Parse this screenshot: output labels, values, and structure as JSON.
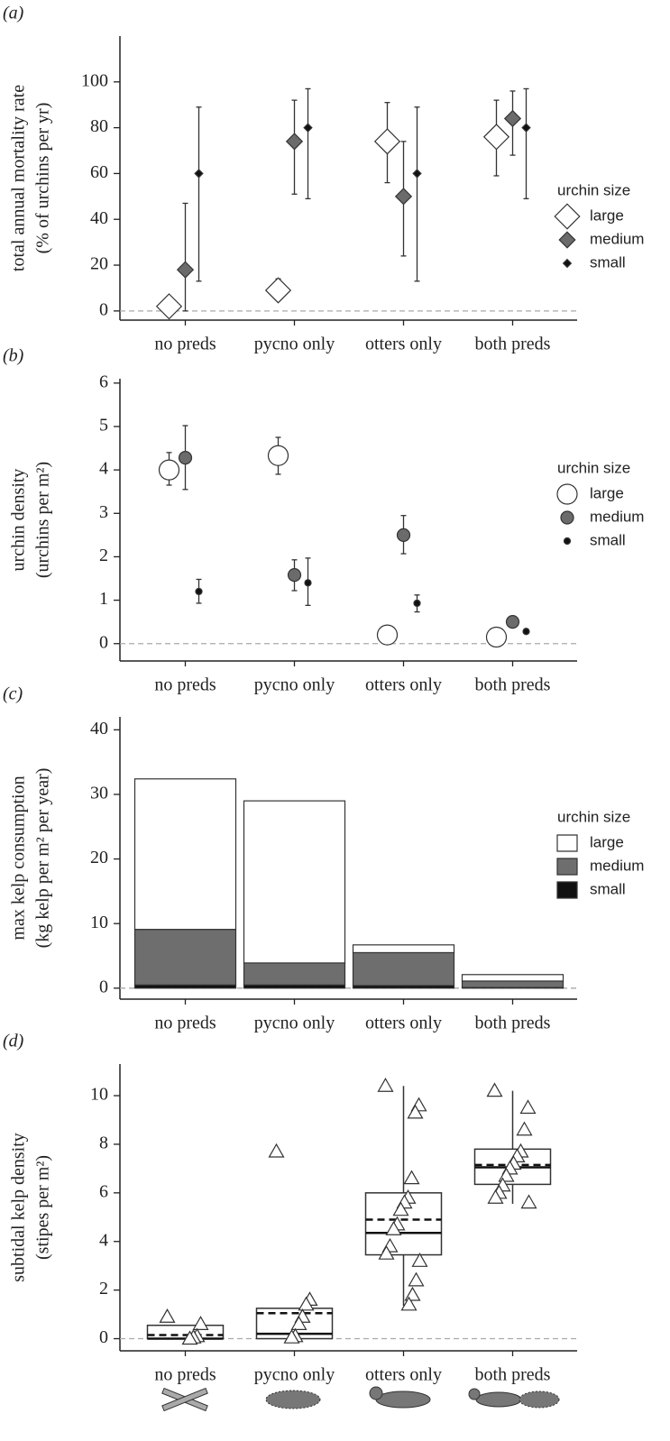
{
  "chart_data": [
    {
      "type": "scatter",
      "label": "(a)",
      "ylabel": [
        "total annual mortality rate",
        "(% of urchins per yr)"
      ],
      "categories": [
        "no preds",
        "pycno only",
        "otters only",
        "both preds"
      ],
      "ylim": [
        -4,
        120
      ],
      "yticks": [
        0,
        20,
        40,
        60,
        80,
        100
      ],
      "hline": 0,
      "marker": "diamond",
      "legend_title": "urchin size",
      "series": [
        {
          "name": "large",
          "color": "#ffffff",
          "values": [
            2,
            9,
            74,
            76
          ],
          "lower": [
            null,
            5,
            56,
            59
          ],
          "upper": [
            null,
            14,
            91,
            92
          ]
        },
        {
          "name": "medium",
          "color": "#6b6b6b",
          "values": [
            18,
            74,
            50,
            84
          ],
          "lower": [
            0,
            51,
            24,
            68
          ],
          "upper": [
            47,
            92,
            74,
            96
          ]
        },
        {
          "name": "small",
          "color": "#111111",
          "values": [
            60,
            80,
            60,
            80
          ],
          "lower": [
            13,
            49,
            13,
            49
          ],
          "upper": [
            89,
            97,
            89,
            97
          ]
        }
      ]
    },
    {
      "type": "scatter",
      "label": "(b)",
      "ylabel": [
        "urchin density",
        "(urchins per m²)"
      ],
      "categories": [
        "no preds",
        "pycno only",
        "otters only",
        "both preds"
      ],
      "ylim": [
        -0.4,
        6.1
      ],
      "yticks": [
        0,
        1,
        2,
        3,
        4,
        5,
        6
      ],
      "hline": 0,
      "marker": "circle",
      "legend_title": "urchin size",
      "series": [
        {
          "name": "large",
          "color": "#ffffff",
          "values": [
            4.0,
            4.33,
            0.2,
            0.15
          ],
          "lower": [
            3.65,
            3.9,
            null,
            null
          ],
          "upper": [
            4.4,
            4.75,
            null,
            null
          ]
        },
        {
          "name": "medium",
          "color": "#6b6b6b",
          "values": [
            4.28,
            1.58,
            2.5,
            0.5
          ],
          "lower": [
            3.55,
            1.22,
            2.07,
            null
          ],
          "upper": [
            5.02,
            1.93,
            2.95,
            null
          ]
        },
        {
          "name": "small",
          "color": "#111111",
          "values": [
            1.2,
            1.4,
            0.93,
            0.28
          ],
          "lower": [
            0.93,
            0.88,
            0.73,
            null
          ],
          "upper": [
            1.48,
            1.97,
            1.12,
            null
          ]
        }
      ]
    },
    {
      "type": "stacked_bar",
      "label": "(c)",
      "ylabel": [
        "max kelp consumption",
        "(kg kelp per m² per year)"
      ],
      "categories": [
        "no preds",
        "pycno only",
        "otters only",
        "both preds"
      ],
      "ylim": [
        -1.7,
        42
      ],
      "yticks": [
        0,
        10,
        20,
        30,
        40
      ],
      "hline": 0,
      "marker": "square",
      "legend_title": "urchin size",
      "series": [
        {
          "name": "large",
          "color": "#ffffff",
          "values": [
            23.3,
            25.1,
            1.2,
            1.0
          ]
        },
        {
          "name": "medium",
          "color": "#6e6e6e",
          "values": [
            8.6,
            3.4,
            5.1,
            1.0
          ]
        },
        {
          "name": "small",
          "color": "#111111",
          "values": [
            0.5,
            0.5,
            0.4,
            0.1
          ]
        }
      ]
    },
    {
      "type": "box",
      "label": "(d)",
      "ylabel": [
        "subtidal kelp density",
        "(stipes per m²)"
      ],
      "categories": [
        "no preds",
        "pycno only",
        "otters only",
        "both preds"
      ],
      "ylim": [
        -0.5,
        11.3
      ],
      "yticks": [
        0,
        2,
        4,
        6,
        8,
        10
      ],
      "hline": 0,
      "boxes": [
        {
          "whisker_low": null,
          "q1": 0,
          "median": 0,
          "q3": 0.55,
          "whisker_high": null,
          "mean": 0.15,
          "points": [
            0.9,
            0.6,
            0.1,
            0.05,
            0
          ]
        },
        {
          "whisker_low": 0,
          "q1": 0,
          "median": 0.2,
          "q3": 1.25,
          "whisker_high": 1.25,
          "mean": 1.05,
          "points": [
            7.7,
            1.6,
            1.4,
            0.9,
            0.6,
            0.1,
            0.05
          ]
        },
        {
          "whisker_low": 1.35,
          "q1": 3.45,
          "median": 4.35,
          "q3": 6.0,
          "whisker_high": 10.4,
          "mean": 4.9,
          "points": [
            10.4,
            9.6,
            9.3,
            6.6,
            5.8,
            5.6,
            5.3,
            4.7,
            4.5,
            3.8,
            3.5,
            3.2,
            2.4,
            1.8,
            1.4
          ]
        },
        {
          "whisker_low": 5.55,
          "q1": 6.35,
          "median": 7.05,
          "q3": 7.8,
          "whisker_high": 10.2,
          "mean": 7.15,
          "points": [
            10.2,
            9.5,
            8.6,
            7.7,
            7.5,
            7.2,
            7.0,
            6.7,
            6.3,
            6.0,
            5.8,
            5.6
          ]
        }
      ]
    }
  ]
}
